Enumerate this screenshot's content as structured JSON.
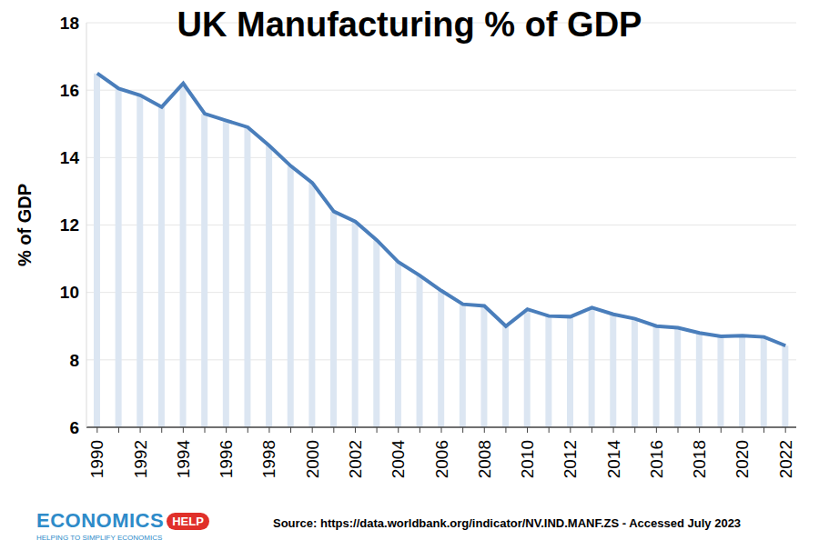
{
  "chart_data": {
    "type": "line",
    "title": "UK Manufacturing % of GDP",
    "y_label": "% of GDP",
    "source": "Source: https://data.worldbank.org/indicator/NV.IND.MANF.ZS - Accessed July 2023",
    "logo_text": "ECONOMICS",
    "logo_badge": "HELP",
    "logo_tagline": "HELPING TO SIMPLIFY ECONOMICS",
    "categories": [
      "1990",
      null,
      "1992",
      null,
      "1994",
      null,
      "1996",
      null,
      "1998",
      null,
      "2000",
      null,
      "2002",
      null,
      "2004",
      null,
      "2006",
      null,
      "2008",
      null,
      "2010",
      null,
      "2012",
      null,
      "2014",
      null,
      "2016",
      null,
      "2018",
      null,
      "2020",
      null,
      "2022"
    ],
    "values": [
      16.5,
      16.05,
      15.85,
      15.5,
      16.2,
      15.3,
      15.1,
      14.9,
      14.35,
      13.75,
      13.25,
      12.4,
      12.1,
      11.55,
      10.9,
      10.5,
      10.05,
      9.65,
      9.6,
      9.0,
      9.5,
      9.3,
      9.28,
      9.55,
      9.35,
      9.22,
      9.0,
      8.95,
      8.8,
      8.7,
      8.72,
      8.68,
      8.42
    ],
    "color": "#4a7ebb",
    "ylim": [
      6,
      18
    ],
    "yticks": [
      6,
      8,
      10,
      12,
      14,
      16,
      18
    ],
    "grid": true
  }
}
